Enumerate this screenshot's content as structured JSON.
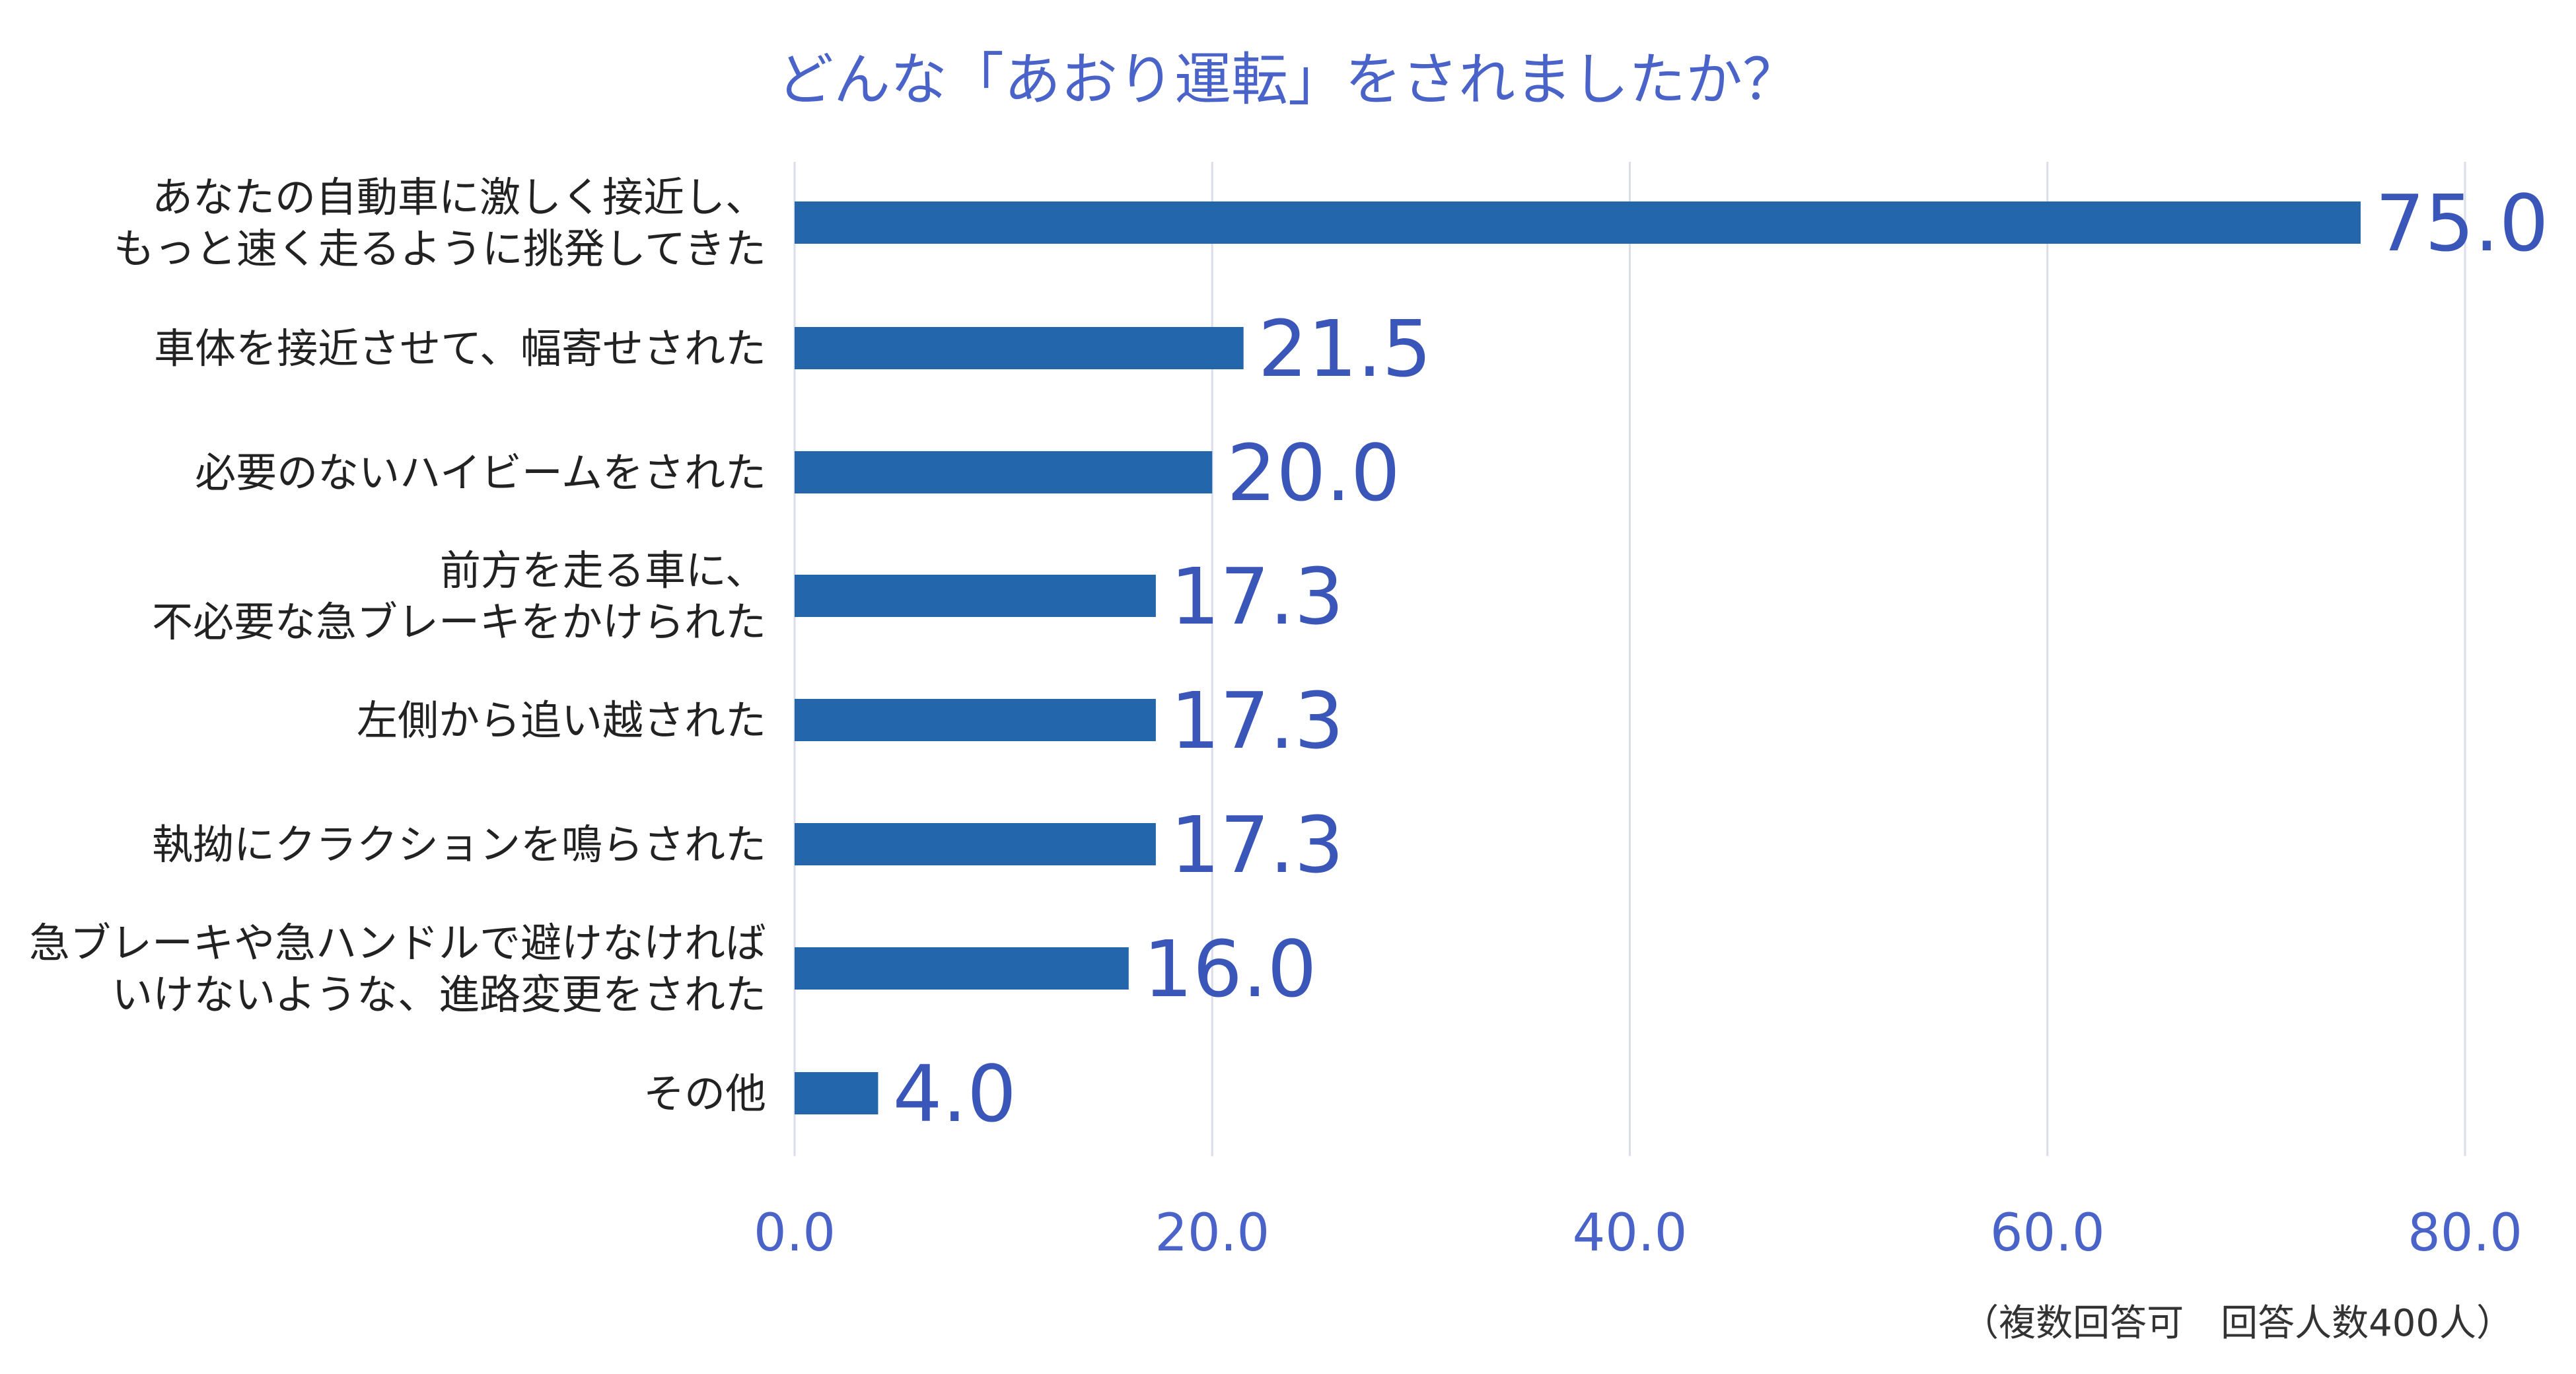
{
  "chart_data": {
    "type": "bar",
    "orientation": "horizontal",
    "title": "どんな「あおり運転」をされましたか？",
    "categories": [
      [
        "あなたの自動車に激しく接近し、",
        "もっと速く走るように挑発してきた"
      ],
      [
        "車体を接近させて、幅寄せされた"
      ],
      [
        "必要のないハイビームをされた"
      ],
      [
        "前方を走る車に、",
        "不必要な急ブレーキをかけられた"
      ],
      [
        "左側から追い越された"
      ],
      [
        "執拗にクラクションを鳴らされた"
      ],
      [
        "急ブレーキや急ハンドルで避けなければ",
        "いけないような、進路変更をされた"
      ],
      [
        "その他"
      ]
    ],
    "values": [
      75.0,
      21.5,
      20.0,
      17.3,
      17.3,
      17.3,
      16.0,
      4.0
    ],
    "value_labels": [
      "75.0",
      "21.5",
      "20.0",
      "17.3",
      "17.3",
      "17.3",
      "16.0",
      "4.0"
    ],
    "xlim": [
      0,
      80
    ],
    "x_ticks": [
      "0.0",
      "20.0",
      "40.0",
      "60.0",
      "80.0"
    ],
    "grid": true,
    "note": "（複数回答可　回答人数400人）",
    "colors": {
      "bar": "#2466AC",
      "title": "#4A63C8",
      "value_label": "#3A56B8",
      "tick": "#4A63C8",
      "grid": "#D9DEEA"
    }
  }
}
